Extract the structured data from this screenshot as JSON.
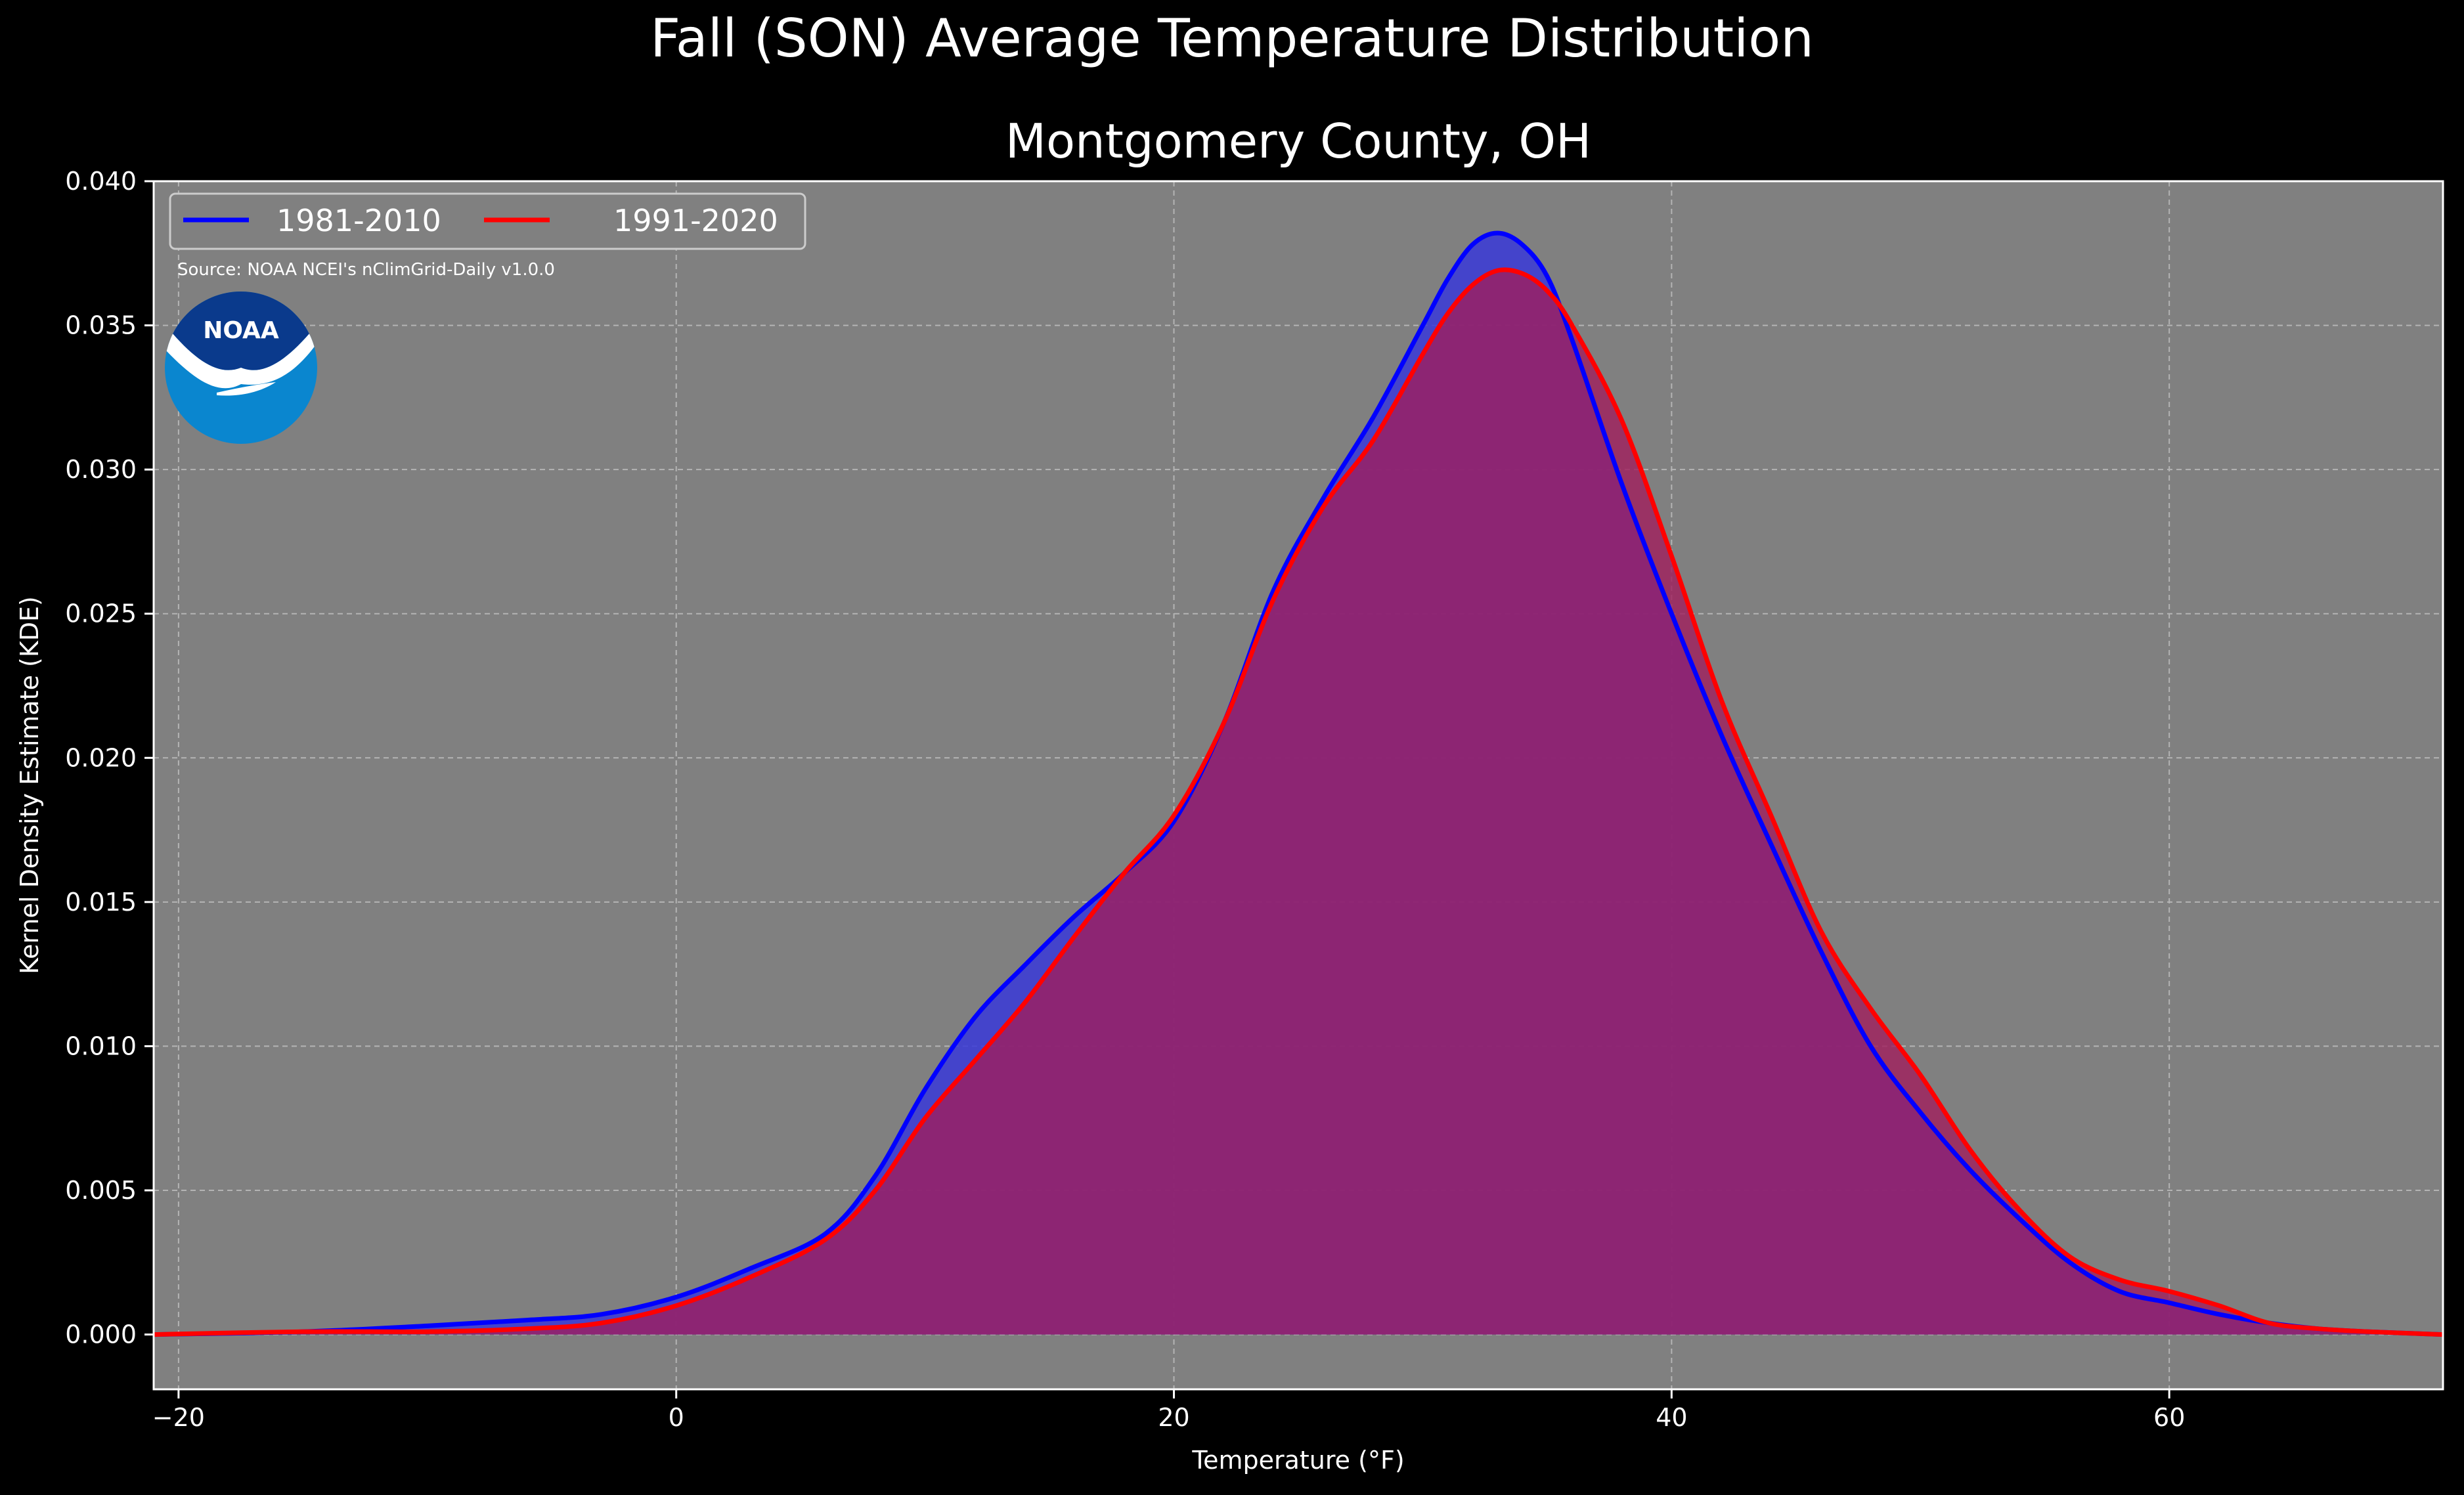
{
  "chart_data": {
    "type": "area",
    "suptitle": "Fall (SON) Average Temperature Distribution",
    "title": "Montgomery County, OH",
    "xlabel": "Temperature (°F)",
    "ylabel": "Kernel Density Estimate (KDE)",
    "xlim": [
      -21.0,
      71.0
    ],
    "ylim": [
      -0.0019,
      0.04
    ],
    "x_ticks": [
      -20,
      0,
      20,
      40,
      60
    ],
    "x_tick_labels": [
      "−20",
      "0",
      "20",
      "40",
      "60"
    ],
    "y_ticks": [
      0.0,
      0.005,
      0.01,
      0.015,
      0.02,
      0.025,
      0.03,
      0.035,
      0.04
    ],
    "y_tick_labels": [
      "0.000",
      "0.005",
      "0.010",
      "0.015",
      "0.020",
      "0.025",
      "0.030",
      "0.035",
      "0.040"
    ],
    "grid": true,
    "legend_placement": "top-left",
    "source_note": "Source: NOAA NCEI's nClimGrid-Daily v1.0.0",
    "logo_text": "NOAA",
    "colors": {
      "figure_bg": "#000000",
      "axes_bg": "#808080",
      "grid": "#b4b4b4",
      "text": "#ffffff",
      "series_1981": "#0000ff",
      "series_1991": "#ff0000",
      "fill_1981": "#3a3ad8",
      "fill_1991": "#a01e5c",
      "logo_dark": "#0a3a8c",
      "logo_light": "#0a86cf"
    },
    "series": [
      {
        "name": "1981-2010",
        "x": [
          -21,
          -15,
          -10,
          -6,
          -3,
          0,
          3,
          6,
          8,
          10,
          12,
          14,
          16,
          18,
          20,
          22,
          24,
          26,
          28,
          30,
          31,
          32,
          33,
          34,
          35,
          36,
          38,
          40,
          42,
          44,
          46,
          48,
          50,
          52,
          54,
          56,
          58,
          60,
          62,
          64,
          66,
          68,
          71
        ],
        "y": [
          0.0,
          0.0001,
          0.0003,
          0.0005,
          0.0007,
          0.0013,
          0.0023,
          0.0035,
          0.0055,
          0.0085,
          0.011,
          0.0128,
          0.0145,
          0.016,
          0.0178,
          0.0212,
          0.0258,
          0.029,
          0.0318,
          0.035,
          0.0366,
          0.0378,
          0.0382,
          0.0378,
          0.0367,
          0.0345,
          0.0295,
          0.025,
          0.0208,
          0.017,
          0.0133,
          0.01,
          0.0077,
          0.0057,
          0.004,
          0.0025,
          0.0015,
          0.0011,
          0.0007,
          0.0004,
          0.0002,
          0.0001,
          0.0
        ]
      },
      {
        "name": "1991-2020",
        "x": [
          -21,
          -15,
          -10,
          -6,
          -3,
          0,
          3,
          6,
          8,
          10,
          12,
          14,
          16,
          18,
          20,
          22,
          24,
          26,
          28,
          30,
          31,
          32,
          33,
          34,
          35,
          36,
          38,
          40,
          42,
          44,
          46,
          48,
          50,
          52,
          54,
          56,
          58,
          60,
          62,
          64,
          66,
          68,
          71
        ],
        "y": [
          0.0,
          0.0001,
          0.0001,
          0.0002,
          0.0004,
          0.001,
          0.002,
          0.0033,
          0.005,
          0.0075,
          0.0095,
          0.0115,
          0.0138,
          0.016,
          0.018,
          0.0212,
          0.0255,
          0.0287,
          0.031,
          0.034,
          0.0354,
          0.0364,
          0.0369,
          0.0368,
          0.0362,
          0.035,
          0.0317,
          0.027,
          0.022,
          0.018,
          0.014,
          0.0113,
          0.009,
          0.0064,
          0.0043,
          0.0027,
          0.0019,
          0.0015,
          0.001,
          0.0004,
          0.0002,
          0.0001,
          0.0
        ]
      }
    ]
  }
}
